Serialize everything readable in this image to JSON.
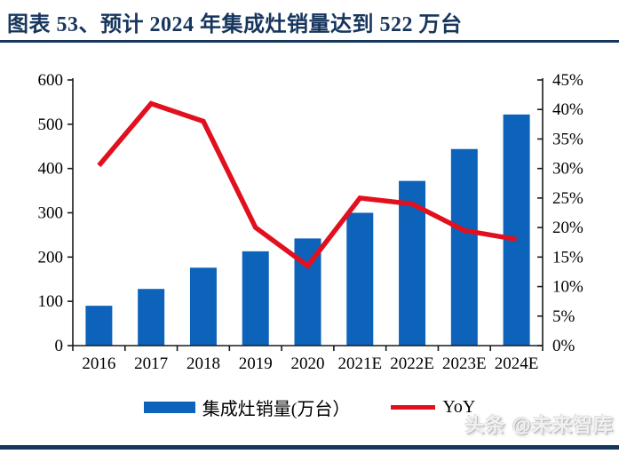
{
  "title": "图表 53、预计 2024 年集成灶销量达到 522 万台",
  "watermark": "头条 @未来智库",
  "legend": {
    "bar_label": "集成灶销量(万台）",
    "line_label": "YoY"
  },
  "colors": {
    "bar": "#0d63ba",
    "line": "#e2101e",
    "navy": "#17365d",
    "axis": "#1a1a1a",
    "text": "#000000"
  },
  "chart_data": {
    "type": "bar",
    "title": "预计 2024 年集成灶销量达到 522 万台",
    "categories": [
      "2016",
      "2017",
      "2018",
      "2019",
      "2020",
      "2021E",
      "2022E",
      "2023E",
      "2024E"
    ],
    "series": [
      {
        "name": "集成灶销量(万台）",
        "type": "bar",
        "axis": "left",
        "unit": "万台",
        "values": [
          90,
          128,
          176,
          213,
          242,
          300,
          372,
          444,
          522
        ]
      },
      {
        "name": "YoY",
        "type": "line",
        "axis": "right",
        "unit": "%",
        "values": [
          30.5,
          41,
          38,
          20,
          13.5,
          25,
          24,
          19.5,
          18
        ]
      }
    ],
    "xlabel": "",
    "ylabel": "",
    "left_axis": {
      "min": 0,
      "max": 600,
      "step": 100,
      "tick_labels": [
        "0",
        "100",
        "200",
        "300",
        "400",
        "500",
        "600"
      ]
    },
    "right_axis": {
      "min": 0,
      "max": 45,
      "step": 5,
      "tick_labels": [
        "0%",
        "5%",
        "10%",
        "15%",
        "20%",
        "25%",
        "30%",
        "35%",
        "40%",
        "45%"
      ]
    },
    "grid": false,
    "legend_position": "bottom"
  }
}
